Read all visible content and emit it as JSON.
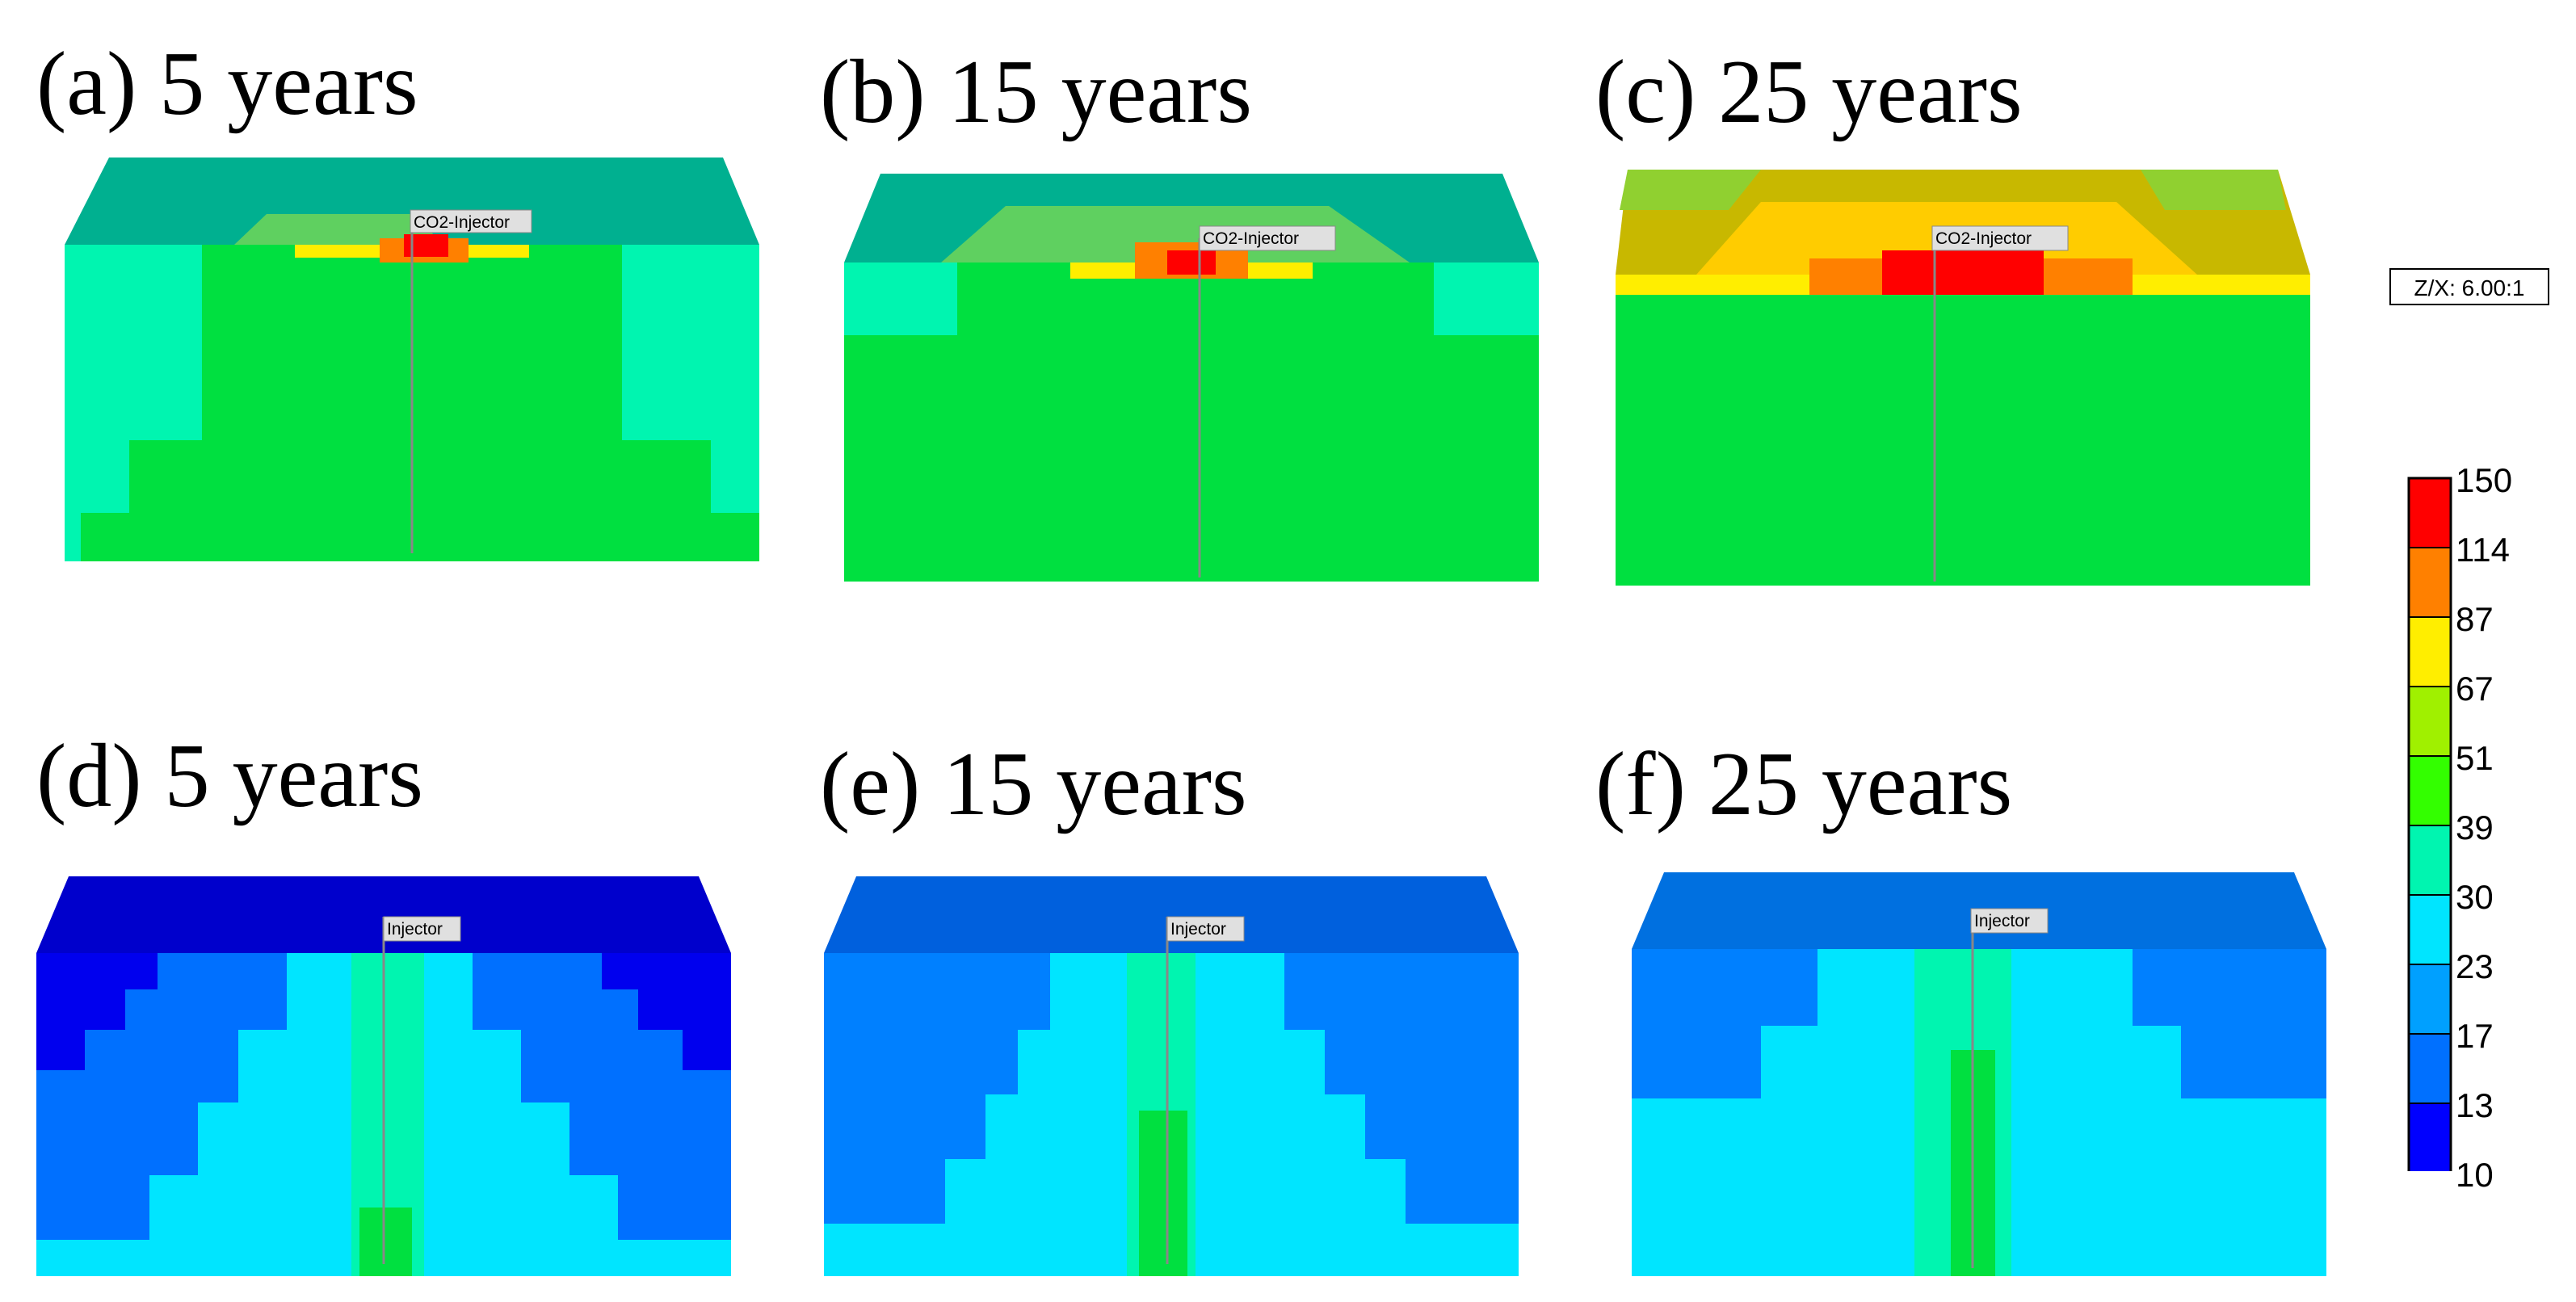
{
  "colors": {
    "scale": [
      "#0000ff",
      "#0070ff",
      "#00a0ff",
      "#00e5ff",
      "#00f5b0",
      "#00e040",
      "#33ff00",
      "#a0f000",
      "#ffee00",
      "#ff8000",
      "#ff0000"
    ],
    "well_line": "#888888",
    "label_bg": "#e0e0e0"
  },
  "legend": {
    "ticks": [
      "150",
      "114",
      "87",
      "67",
      "51",
      "39",
      "30",
      "23",
      "17",
      "13",
      "10"
    ]
  },
  "zx_ratio": "Z/X: 6.00:1",
  "panels": [
    {
      "title": "(a) 5 years",
      "well": "CO2-Injector"
    },
    {
      "title": "(b) 15 years",
      "well": "CO2-Injector"
    },
    {
      "title": "(c) 25 years",
      "well": "CO2-Injector"
    },
    {
      "title": "(d) 5 years",
      "well": "Injector"
    },
    {
      "title": "(e) 15 years",
      "well": "Injector"
    },
    {
      "title": "(f) 25 years",
      "well": "Injector"
    }
  ]
}
